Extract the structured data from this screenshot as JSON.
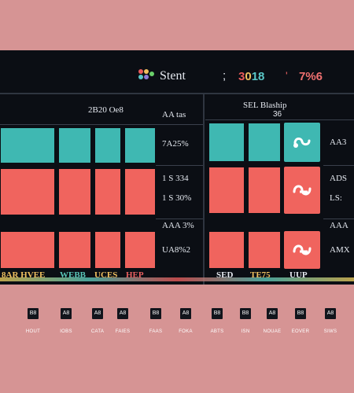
{
  "header": {
    "app_title": "Stent",
    "separator": ";",
    "year_parts": [
      "3",
      "0",
      "18"
    ],
    "separator_dot": "'",
    "value": "7%6"
  },
  "left_pane": {
    "title": "2B20 Oe8",
    "rows": [
      {
        "label": "AA tas"
      },
      {
        "label": "7A25%"
      },
      {
        "label": "1 S 334"
      },
      {
        "label": "1 S 30%"
      },
      {
        "label": "AAA 3%"
      },
      {
        "label": "UA8%2"
      }
    ]
  },
  "right_pane": {
    "title": "SEL Blaship",
    "subtitle": "36",
    "rows": [
      {
        "label": "AA3"
      },
      {
        "label": "ADS"
      },
      {
        "label": "LS:"
      },
      {
        "label": "AAA"
      },
      {
        "label": "AMX"
      }
    ]
  },
  "footer": {
    "items": [
      "8AR HVEE",
      "WEBB",
      "UCES",
      "HEP",
      "SED",
      "TE75",
      "UUP"
    ]
  },
  "bottom_nav": {
    "items": [
      {
        "icon": "B8",
        "label": "HOUT"
      },
      {
        "icon": "A8",
        "label": "IOBS"
      },
      {
        "icon": "A8",
        "label": "CATA"
      },
      {
        "icon": "A8",
        "label": "FAIES"
      },
      {
        "icon": "B8",
        "label": "FAAS"
      },
      {
        "icon": "A8",
        "label": "FOKA"
      },
      {
        "icon": "B8",
        "label": "ABTS"
      },
      {
        "icon": "B8",
        "label": "ISN"
      },
      {
        "icon": "A8",
        "label": "NOUAE"
      },
      {
        "icon": "B8",
        "label": "EOVER"
      },
      {
        "icon": "A8",
        "label": "SIWS"
      }
    ]
  },
  "colors": {
    "background": "#d69494",
    "panel": "#0b0e14",
    "teal": "#3fb8b2",
    "red": "#f0645e"
  }
}
